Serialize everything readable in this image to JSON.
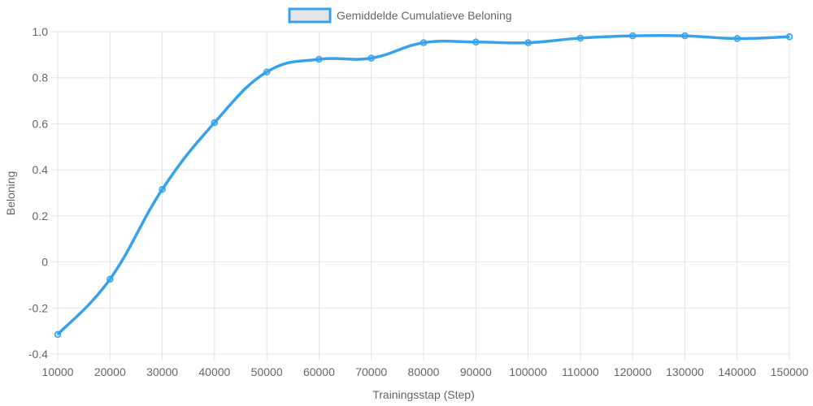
{
  "chart_data": {
    "type": "line",
    "title": "",
    "xlabel": "Trainingsstap (Step)",
    "ylabel": "Beloning",
    "x": [
      10000,
      20000,
      30000,
      40000,
      50000,
      60000,
      70000,
      80000,
      90000,
      100000,
      110000,
      120000,
      130000,
      140000,
      150000
    ],
    "x_tick_labels": [
      "10000",
      "20000",
      "30000",
      "40000",
      "50000",
      "60000",
      "70000",
      "80000",
      "90000",
      "100000",
      "110000",
      "120000",
      "130000",
      "140000",
      "150000"
    ],
    "ylim": [
      -0.4,
      1.0
    ],
    "y_ticks": [
      -0.4,
      -0.2,
      0,
      0.2,
      0.4,
      0.6,
      0.8,
      1.0
    ],
    "y_tick_labels": [
      "-0.4",
      "-0.2",
      "0",
      "0.2",
      "0.4",
      "0.6",
      "0.8",
      "1.0"
    ],
    "grid": true,
    "legend_position": "top",
    "series": [
      {
        "name": "Gemiddelde Cumulatieve Beloning",
        "color": "#36a2eb",
        "fill": "#e5e5e5",
        "values": [
          -0.315,
          -0.075,
          0.315,
          0.605,
          0.825,
          0.88,
          0.885,
          0.952,
          0.955,
          0.952,
          0.972,
          0.982,
          0.982,
          0.97,
          0.978
        ]
      }
    ]
  }
}
